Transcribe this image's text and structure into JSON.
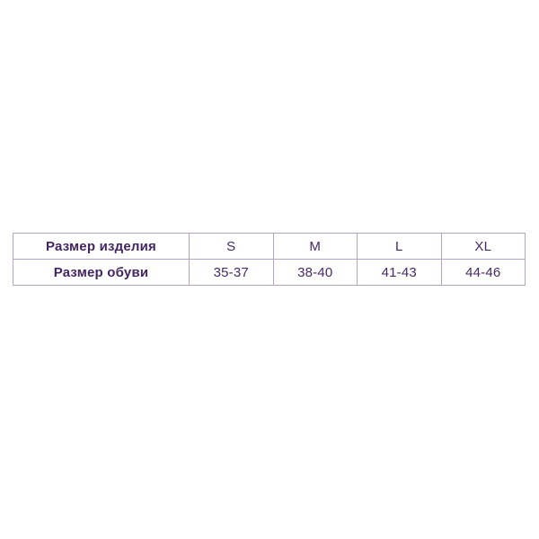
{
  "chart_data": {
    "type": "table",
    "title": "",
    "rows": [
      {
        "label": "Размер изделия",
        "values": [
          "S",
          "M",
          "L",
          "XL"
        ]
      },
      {
        "label": "Размер обуви",
        "values": [
          "35-37",
          "38-40",
          "41-43",
          "44-46"
        ]
      }
    ]
  },
  "style": {
    "background": "#ffffff",
    "border_color": "#b2a4c2",
    "text_color": "#452a63"
  }
}
